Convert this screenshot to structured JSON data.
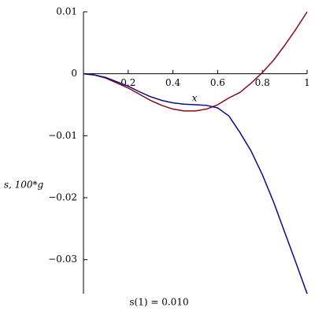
{
  "chart_data": {
    "type": "line",
    "x_label": "x",
    "y_label": "s, 100*g",
    "caption": "s(1) = 0.010",
    "x": [
      0,
      0.05,
      0.1,
      0.15,
      0.2,
      0.25,
      0.3,
      0.35,
      0.4,
      0.45,
      0.5,
      0.55,
      0.6,
      0.65,
      0.7,
      0.75,
      0.8,
      0.85,
      0.9,
      0.95,
      1
    ],
    "series": [
      {
        "color": "#8b0a1a",
        "values": [
          0,
          -0.0002,
          -0.0007,
          -0.0015,
          -0.0023,
          -0.0033,
          -0.0043,
          -0.0051,
          -0.0057,
          -0.006,
          -0.006,
          -0.0057,
          -0.005,
          -0.0039,
          -0.003,
          -0.0015,
          0.0002,
          0.0022,
          0.0046,
          0.0072,
          0.01
        ]
      },
      {
        "color": "#0a0a8b",
        "values": [
          0,
          -0.0002,
          -0.0006,
          -0.0013,
          -0.002,
          -0.0029,
          -0.0037,
          -0.0043,
          -0.0047,
          -0.0049,
          -0.005,
          -0.0051,
          -0.0055,
          -0.0068,
          -0.0095,
          -0.0125,
          -0.0163,
          -0.0207,
          -0.0256,
          -0.0305,
          -0.0355
        ]
      }
    ],
    "xlim": [
      0,
      1
    ],
    "ylim": [
      -0.0355,
      0.01
    ],
    "xticks": [
      0.2,
      0.4,
      0.6,
      0.8,
      1
    ],
    "yticks": [
      {
        "value": 0.01,
        "label": "0.01"
      },
      0,
      {
        "value": -0.01,
        "label": "−0.01"
      },
      {
        "value": -0.02,
        "label": "−0.02"
      },
      {
        "value": -0.03,
        "label": "−0.03"
      }
    ]
  }
}
